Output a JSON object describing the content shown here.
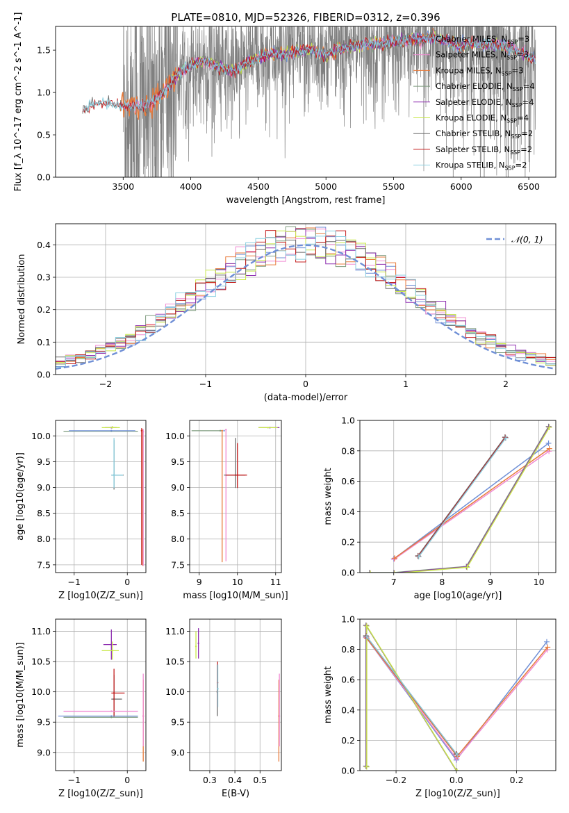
{
  "figure": {
    "title": "PLATE=0810, MJD=52326, FIBERID=0312, z=0.396"
  },
  "series_names": [
    "Chabrier MILES, N_SSP=3",
    "Salpeter MILES, N_SSP=3",
    "Kroupa MILES, N_SSP=3",
    "Chabrier ELODIE, N_SSP=4",
    "Salpeter ELODIE, N_SSP=4",
    "Kroupa ELODIE, N_SSP=4",
    "Chabrier STELIB, N_SSP=2",
    "Salpeter STELIB, N_SSP=2",
    "Kroupa STELIB, N_SSP=2"
  ],
  "series_colors": [
    "#6f8fd6",
    "#f08ad2",
    "#e87a3a",
    "#7f9c7f",
    "#8e2fb0",
    "#c8e84a",
    "#6b6b6b",
    "#c41f1f",
    "#89cfe0"
  ],
  "chart_data": [
    {
      "id": "spectrum",
      "type": "line",
      "title": "PLATE=0810, MJD=52326, FIBERID=0312, z=0.396",
      "xlabel": "wavelength [Angstrom, rest frame]",
      "ylabel": "Flux [f_λ 10^-17 erg cm^-2 s^-1 A^-1]",
      "xlim": [
        3000,
        6700
      ],
      "ylim": [
        0,
        1.78
      ],
      "xticks": [
        3500,
        4000,
        4500,
        5000,
        5500,
        6000,
        6500
      ],
      "yticks": [
        0.0,
        0.5,
        1.0,
        1.5
      ],
      "legend_position": "top-right",
      "grid": false,
      "model_continuum": {
        "x": [
          3200,
          3300,
          3400,
          3500,
          3600,
          3700,
          3800,
          3900,
          4000,
          4100,
          4200,
          4300,
          4400,
          4500,
          4600,
          4700,
          4800,
          4900,
          5000,
          5100,
          5200,
          5300,
          5400,
          5500,
          5600,
          5700,
          5800,
          5900,
          6000,
          6100,
          6200,
          6300,
          6400,
          6500
        ],
        "y": [
          0.78,
          0.88,
          0.87,
          0.84,
          0.83,
          0.86,
          1.0,
          1.2,
          1.33,
          1.38,
          1.31,
          1.25,
          1.33,
          1.42,
          1.45,
          1.45,
          1.48,
          1.5,
          1.43,
          1.52,
          1.55,
          1.58,
          1.57,
          1.6,
          1.62,
          1.63,
          1.65,
          1.6,
          1.55,
          1.58,
          1.57,
          1.55,
          1.5,
          1.42
        ]
      },
      "data_range": [
        3500,
        6550
      ]
    },
    {
      "id": "residuals",
      "type": "histogram",
      "xlabel": "(data-model)/error",
      "ylabel": "Normed distribution",
      "xlim": [
        -2.5,
        2.5
      ],
      "ylim": [
        0,
        0.465
      ],
      "xticks": [
        -2,
        -1,
        0,
        1,
        2
      ],
      "yticks": [
        0.0,
        0.1,
        0.2,
        0.3,
        0.4
      ],
      "grid": true,
      "legend": "𝒩(0, 1)",
      "legend_position": "top-right",
      "bin_width": 0.1
    },
    {
      "id": "age-vs-Z",
      "type": "scatter",
      "xlabel": "Z [log10(Z/Z_sun)]",
      "ylabel": "age  [log10(age/yr)]",
      "xlim": [
        -1.35,
        0.35
      ],
      "ylim": [
        7.35,
        10.3
      ],
      "xticks": [
        -1,
        0
      ],
      "yticks": [
        7.5,
        8.0,
        8.5,
        9.0,
        9.5,
        10.0
      ],
      "grid": true,
      "points": [
        {
          "s": 3,
          "x": -0.3,
          "y": 10.09,
          "xerr": [
            0.9,
            0.5
          ],
          "yerr": [
            0,
            0
          ]
        },
        {
          "s": 0,
          "x": -0.3,
          "y": 10.1,
          "xerr": [
            0.8,
            0.45
          ],
          "yerr": [
            0,
            0
          ]
        },
        {
          "s": 4,
          "x": -0.3,
          "y": 10.16,
          "xerr": [
            0.12,
            0.1
          ],
          "yerr": [
            0,
            0
          ]
        },
        {
          "s": 5,
          "x": -0.28,
          "y": 10.16,
          "xerr": [
            0.2,
            0.14
          ],
          "yerr": [
            0,
            0.03
          ]
        },
        {
          "s": 6,
          "x": -0.25,
          "y": 9.24,
          "xerr": [
            0.05,
            0.18
          ],
          "yerr": [
            0.28,
            0.68
          ]
        },
        {
          "s": 8,
          "x": -0.25,
          "y": 9.24,
          "xerr": [
            0.05,
            0.17
          ],
          "yerr": [
            0.25,
            0.72
          ]
        },
        {
          "s": 7,
          "x": 0.27,
          "y": 10.1,
          "xerr": [
            0,
            0
          ],
          "yerr": [
            2.6,
            0.05
          ]
        },
        {
          "s": 2,
          "x": 0.29,
          "y": 10.08,
          "xerr": [
            0,
            0
          ],
          "yerr": [
            2.6,
            0.05
          ]
        },
        {
          "s": 1,
          "x": 0.3,
          "y": 10.08,
          "xerr": [
            0,
            0
          ],
          "yerr": [
            2.6,
            0.05
          ]
        }
      ]
    },
    {
      "id": "age-vs-mass",
      "type": "scatter",
      "xlabel": "mass [log10(M/M_sun)]",
      "ylabel": "",
      "xlim": [
        8.75,
        11.15
      ],
      "ylim": [
        7.35,
        10.3
      ],
      "xticks": [
        9,
        10,
        11
      ],
      "yticks": [
        7.5,
        8.0,
        8.5,
        9.0,
        9.5,
        10.0
      ],
      "grid": true,
      "points": [
        {
          "s": 3,
          "x": 9.55,
          "y": 10.1,
          "xerr": [
            0.75,
            0.05
          ],
          "yerr": [
            0,
            0
          ]
        },
        {
          "s": 2,
          "x": 9.6,
          "y": 10.1,
          "xerr": [
            0,
            0
          ],
          "yerr": [
            2.55,
            0
          ]
        },
        {
          "s": 1,
          "x": 9.7,
          "y": 10.12,
          "xerr": [
            0,
            0
          ],
          "yerr": [
            2.55,
            0
          ]
        },
        {
          "s": 0,
          "x": 9.65,
          "y": 10.1,
          "xerr": [
            0,
            0
          ],
          "yerr": [
            0,
            0
          ]
        },
        {
          "s": 6,
          "x": 9.95,
          "y": 9.24,
          "xerr": [
            0.3,
            0.25
          ],
          "yerr": [
            0.25,
            0.72
          ]
        },
        {
          "s": 7,
          "x": 10.0,
          "y": 9.24,
          "xerr": [
            0.3,
            0.25
          ],
          "yerr": [
            0.25,
            0.62
          ]
        },
        {
          "s": 4,
          "x": 10.85,
          "y": 10.16,
          "xerr": [
            0.3,
            0.25
          ],
          "yerr": [
            0,
            0
          ]
        },
        {
          "s": 5,
          "x": 10.8,
          "y": 10.16,
          "xerr": [
            0.25,
            0.25
          ],
          "yerr": [
            0,
            0
          ]
        }
      ]
    },
    {
      "id": "weight-vs-age",
      "type": "line",
      "xlabel": "age  [log10(age/yr)]",
      "ylabel": "mass weight",
      "xlim": [
        6.3,
        10.35
      ],
      "ylim": [
        0,
        1.0
      ],
      "xticks": [
        7,
        8,
        9,
        10
      ],
      "yticks": [
        0.0,
        0.2,
        0.4,
        0.6,
        0.8,
        1.0
      ],
      "grid": true,
      "series": [
        {
          "s": 0,
          "x": [
            7.0,
            10.2
          ],
          "y": [
            0.09,
            0.85
          ]
        },
        {
          "s": 1,
          "x": [
            7.0,
            10.2
          ],
          "y": [
            0.09,
            0.8
          ]
        },
        {
          "s": 2,
          "x": [
            7.0,
            10.2
          ],
          "y": [
            0.1,
            0.82
          ]
        },
        {
          "s": 3,
          "x": [
            6.5,
            7.0,
            8.5,
            10.2
          ],
          "y": [
            0.0,
            0.0,
            0.04,
            0.96
          ]
        },
        {
          "s": 4,
          "x": [
            6.5,
            7.0,
            8.5,
            10.2
          ],
          "y": [
            0.0,
            0.0,
            0.04,
            0.96
          ]
        },
        {
          "s": 5,
          "x": [
            6.5,
            7.0,
            8.5,
            10.2
          ],
          "y": [
            0.0,
            0.0,
            0.04,
            0.96
          ]
        },
        {
          "s": 6,
          "x": [
            7.5,
            9.3
          ],
          "y": [
            0.11,
            0.89
          ]
        },
        {
          "s": 7,
          "x": [
            7.5,
            9.3
          ],
          "y": [
            0.11,
            0.89
          ]
        },
        {
          "s": 8,
          "x": [
            7.5,
            9.3
          ],
          "y": [
            0.11,
            0.89
          ]
        }
      ]
    },
    {
      "id": "mass-vs-Z",
      "type": "scatter",
      "xlabel": "Z [log10(Z/Z_sun)]",
      "ylabel": "mass [log10(M/M_sun)]",
      "xlim": [
        -1.35,
        0.35
      ],
      "ylim": [
        8.7,
        11.2
      ],
      "xticks": [
        -1,
        0
      ],
      "yticks": [
        9.0,
        9.5,
        10.0,
        10.5,
        11.0
      ],
      "grid": true,
      "points": [
        {
          "s": 4,
          "x": -0.3,
          "y": 10.78,
          "xerr": [
            0.15,
            0.1
          ],
          "yerr": [
            0.25,
            0.25
          ]
        },
        {
          "s": 5,
          "x": -0.28,
          "y": 10.68,
          "xerr": [
            0.2,
            0.12
          ],
          "yerr": [
            0.15,
            0.15
          ]
        },
        {
          "s": 6,
          "x": -0.25,
          "y": 9.88,
          "xerr": [
            0.05,
            0.15
          ],
          "yerr": [
            0.28,
            0.4
          ]
        },
        {
          "s": 7,
          "x": -0.25,
          "y": 9.98,
          "xerr": [
            0.05,
            0.2
          ],
          "yerr": [
            0.4,
            0.4
          ]
        },
        {
          "s": 1,
          "x": -0.3,
          "y": 9.68,
          "xerr": [
            0.9,
            0.5
          ],
          "yerr": [
            0,
            0
          ]
        },
        {
          "s": 0,
          "x": -0.3,
          "y": 9.6,
          "xerr": [
            1.0,
            0.5
          ],
          "yerr": [
            0,
            0
          ]
        },
        {
          "s": 3,
          "x": -0.3,
          "y": 9.58,
          "xerr": [
            0.9,
            0.5
          ],
          "yerr": [
            0,
            0
          ]
        },
        {
          "s": 2,
          "x": 0.3,
          "y": 9.6,
          "xerr": [
            0,
            0
          ],
          "yerr": [
            0.75,
            0.6
          ]
        },
        {
          "s": 1,
          "x": 0.3,
          "y": 9.6,
          "xerr": [
            0,
            0
          ],
          "yerr": [
            0.5,
            0.7
          ]
        }
      ]
    },
    {
      "id": "mass-vs-EBV",
      "type": "scatter",
      "xlabel": "E(B-V)",
      "ylabel": "",
      "xlim": [
        0.22,
        0.585
      ],
      "ylim": [
        8.7,
        11.2
      ],
      "xticks": [
        0.3,
        0.4,
        0.5
      ],
      "xtick_labels": [
        "0.3",
        "0.4",
        "0.5"
      ],
      "yticks": [
        9.0,
        9.5,
        10.0,
        10.5,
        11.0
      ],
      "grid": true,
      "points": [
        {
          "s": 4,
          "x": 0.255,
          "y": 10.8,
          "xerr": [
            0,
            0
          ],
          "yerr": [
            0.25,
            0.25
          ]
        },
        {
          "s": 5,
          "x": 0.245,
          "y": 10.75,
          "xerr": [
            0,
            0
          ],
          "yerr": [
            0.2,
            0.25
          ]
        },
        {
          "s": 6,
          "x": 0.33,
          "y": 10.0,
          "xerr": [
            0,
            0
          ],
          "yerr": [
            0.4,
            0.45
          ]
        },
        {
          "s": 7,
          "x": 0.331,
          "y": 10.15,
          "xerr": [
            0,
            0
          ],
          "yerr": [
            0.4,
            0.35
          ]
        },
        {
          "s": 8,
          "x": 0.332,
          "y": 10.05,
          "xerr": [
            0,
            0
          ],
          "yerr": [
            0.3,
            0.4
          ]
        },
        {
          "s": 2,
          "x": 0.575,
          "y": 9.6,
          "xerr": [
            0,
            0
          ],
          "yerr": [
            0.75,
            0.6
          ]
        },
        {
          "s": 1,
          "x": 0.577,
          "y": 9.6,
          "xerr": [
            0,
            0
          ],
          "yerr": [
            0.5,
            0.7
          ]
        }
      ]
    },
    {
      "id": "weight-vs-Z",
      "type": "line",
      "xlabel": "Z [log10(Z/Z_sun)]",
      "ylabel": "mass weight",
      "xlim": [
        -0.32,
        0.33
      ],
      "ylim": [
        0,
        1.0
      ],
      "xticks": [
        -0.2,
        0.0,
        0.2
      ],
      "yticks": [
        0.0,
        0.2,
        0.4,
        0.6,
        0.8,
        1.0
      ],
      "grid": true,
      "series": [
        {
          "s": 0,
          "x": [
            -0.3,
            0.0,
            0.3
          ],
          "y": [
            0.88,
            0.07,
            0.85
          ]
        },
        {
          "s": 1,
          "x": [
            -0.3,
            0.0,
            0.3
          ],
          "y": [
            0.88,
            0.08,
            0.8
          ]
        },
        {
          "s": 2,
          "x": [
            -0.3,
            0.0,
            0.3
          ],
          "y": [
            0.88,
            0.1,
            0.82
          ]
        },
        {
          "s": 3,
          "x": [
            -0.3,
            -0.3,
            0.0
          ],
          "y": [
            0.03,
            0.96,
            0.0
          ]
        },
        {
          "s": 4,
          "x": [
            -0.3,
            -0.3,
            0.0
          ],
          "y": [
            0.03,
            0.96,
            0.0
          ]
        },
        {
          "s": 5,
          "x": [
            -0.3,
            -0.3,
            0.0
          ],
          "y": [
            0.03,
            0.96,
            0.0
          ]
        },
        {
          "s": 6,
          "x": [
            -0.3,
            0.0
          ],
          "y": [
            0.89,
            0.11
          ]
        },
        {
          "s": 7,
          "x": [
            -0.3,
            0.0
          ],
          "y": [
            0.89,
            0.11
          ]
        },
        {
          "s": 8,
          "x": [
            -0.3,
            0.0
          ],
          "y": [
            0.89,
            0.11
          ]
        }
      ]
    }
  ]
}
